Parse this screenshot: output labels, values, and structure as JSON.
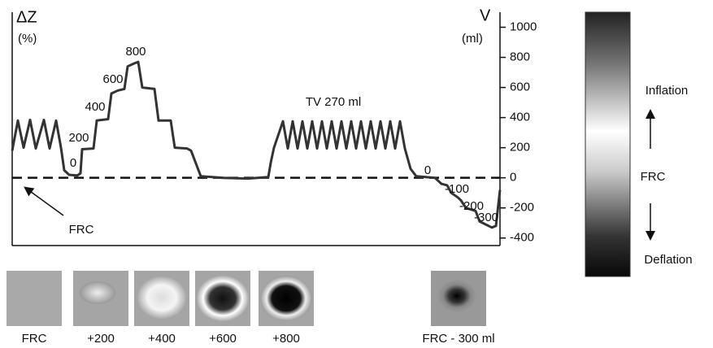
{
  "chart_data": {
    "type": "line",
    "y_label": "ΔZ",
    "y_unit": "(%)",
    "y2_label": "V",
    "y2_unit": "(ml)",
    "xlim": [
      0,
      600
    ],
    "ylim": [
      -450,
      1100
    ],
    "yticks": [
      -400,
      -200,
      0,
      200,
      400,
      600,
      800,
      1000
    ],
    "reference_line": 0,
    "color": "#333333",
    "x": [
      0,
      7,
      14,
      22,
      29,
      39,
      46,
      54,
      60,
      64,
      70,
      80,
      84,
      86,
      100,
      104,
      118,
      122,
      130,
      138,
      142,
      150,
      155,
      160,
      175,
      180,
      195,
      200,
      215,
      220,
      232,
      260,
      290,
      315,
      318,
      322,
      333,
      339,
      345,
      351,
      357,
      363,
      369,
      375,
      381,
      387,
      393,
      399,
      405,
      411,
      417,
      423,
      429,
      435,
      441,
      447,
      453,
      459,
      465,
      471,
      477,
      483,
      490,
      497,
      520,
      528,
      535,
      540,
      548,
      552,
      558,
      570,
      575,
      590,
      595,
      600
    ],
    "values": [
      180,
      380,
      200,
      385,
      195,
      385,
      195,
      380,
      200,
      50,
      20,
      15,
      30,
      190,
      195,
      380,
      390,
      560,
      580,
      590,
      740,
      760,
      770,
      600,
      590,
      380,
      380,
      200,
      195,
      180,
      10,
      0,
      -5,
      5,
      100,
      200,
      375,
      195,
      375,
      195,
      375,
      195,
      375,
      195,
      375,
      195,
      375,
      195,
      375,
      195,
      375,
      195,
      375,
      195,
      375,
      195,
      375,
      195,
      375,
      195,
      375,
      195,
      60,
      10,
      0,
      -40,
      -50,
      -100,
      -130,
      -150,
      -200,
      -220,
      -290,
      -330,
      -320,
      -80
    ],
    "annotations": [
      "0",
      "200",
      "400",
      "600",
      "800",
      "TV 270 ml",
      "0",
      "-100",
      "-200",
      "-300",
      "FRC"
    ]
  },
  "thumbnail_labels": [
    "FRC",
    "+200",
    "+400",
    "+600",
    "+800",
    "FRC - 300 ml"
  ],
  "colorbar": {
    "top": "Inflation",
    "middle": "FRC",
    "bottom": "Deflation"
  }
}
